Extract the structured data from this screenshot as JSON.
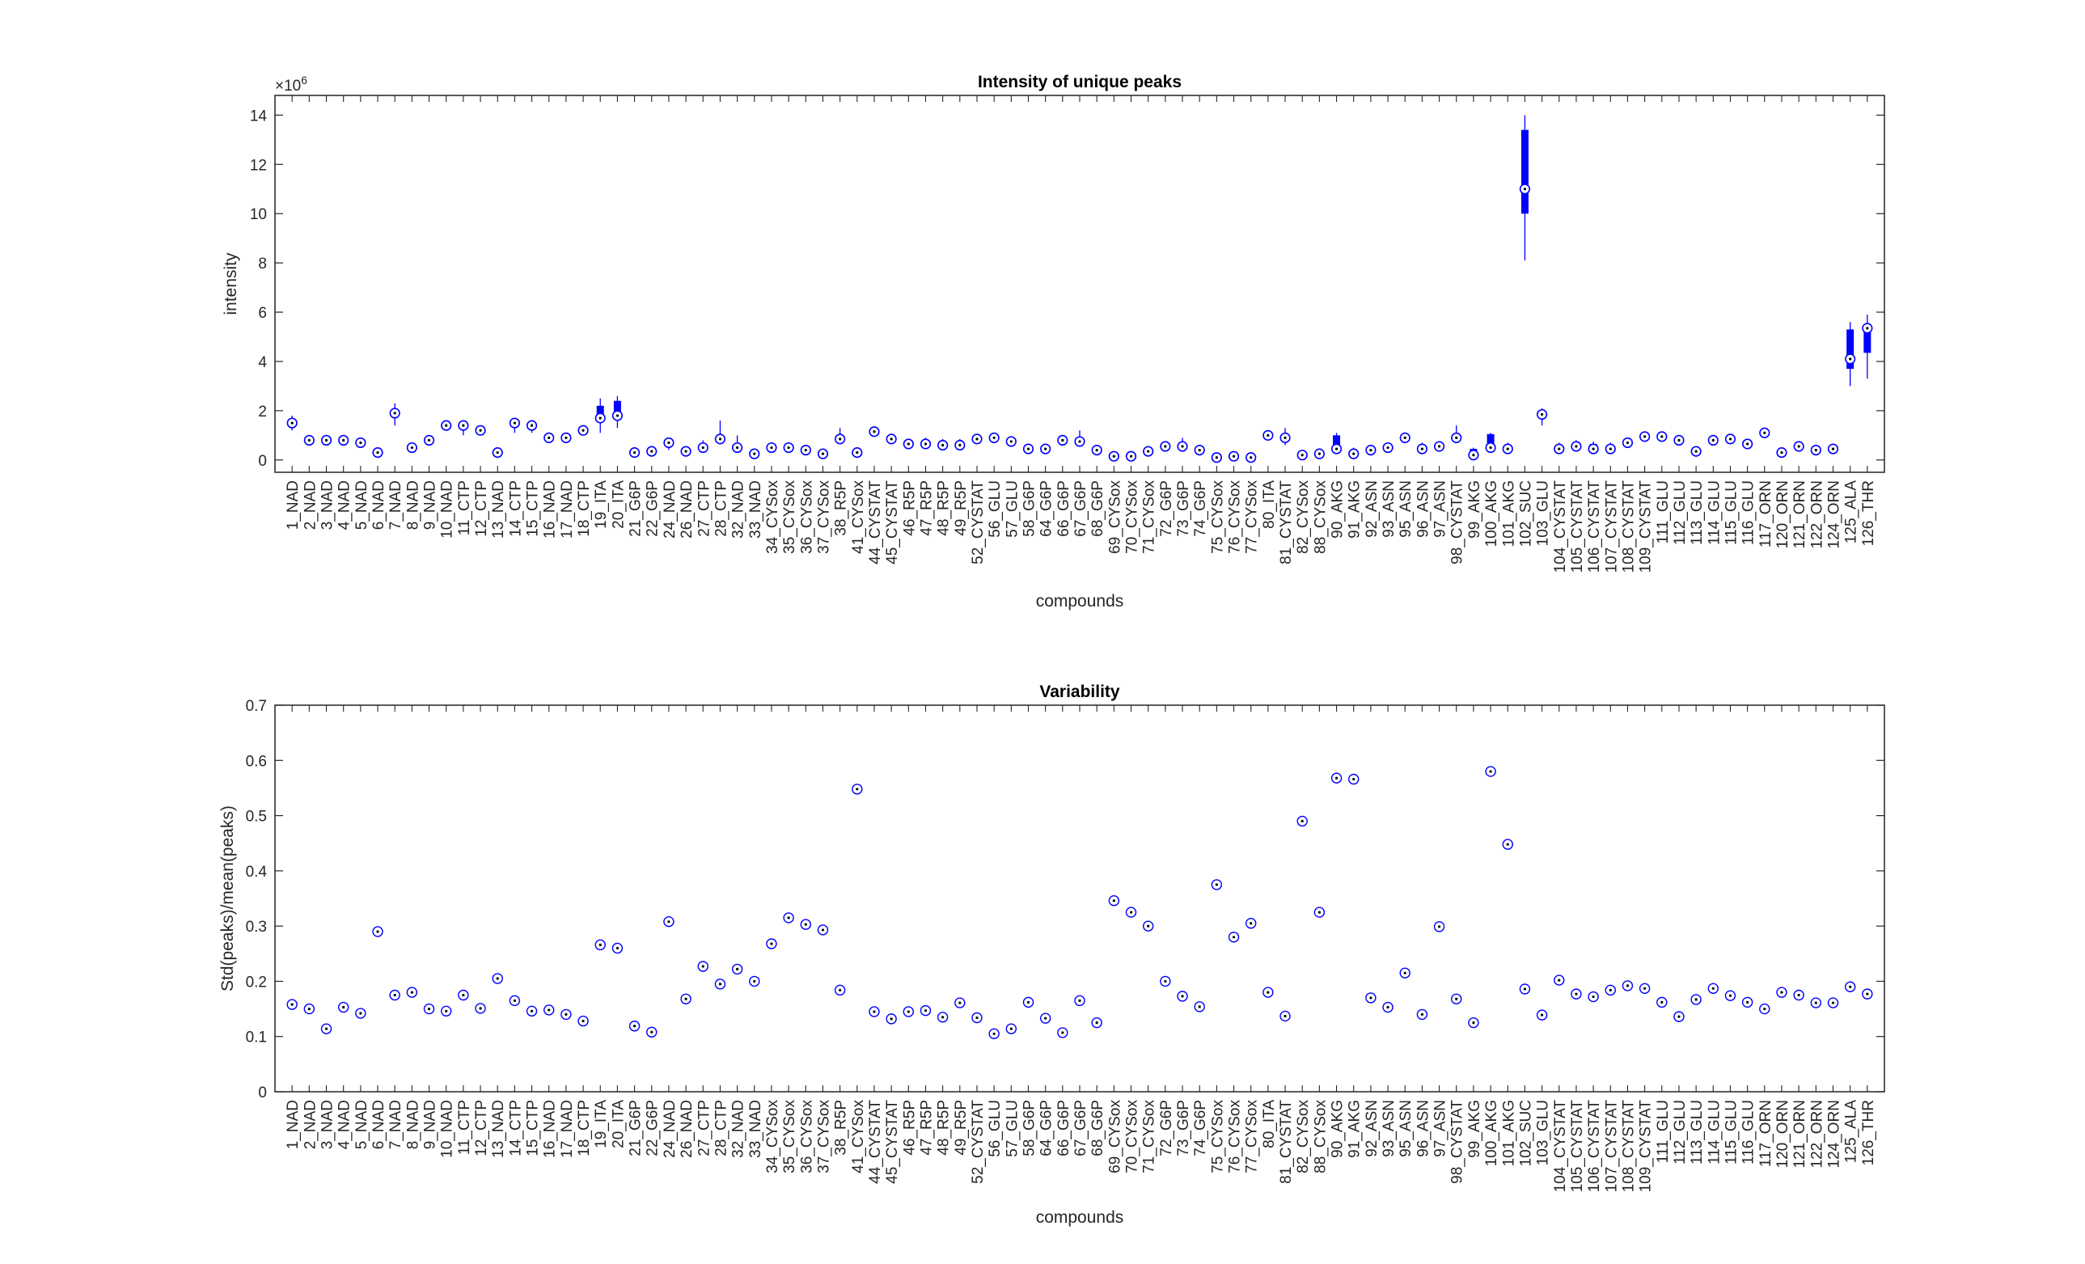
{
  "chart_data": [
    {
      "type": "box",
      "title": "Intensity of unique peaks",
      "xlabel": "compounds",
      "ylabel": "intensity",
      "y_exponent_label": "×10",
      "y_exponent": "6",
      "ylim": [
        -0.5,
        14.8
      ],
      "yticks": [
        0,
        2,
        4,
        6,
        8,
        10,
        12,
        14
      ],
      "color": "#0000ff",
      "categories": [
        "1_NAD",
        "2_NAD",
        "3_NAD",
        "4_NAD",
        "5_NAD",
        "6_NAD",
        "7_NAD",
        "8_NAD",
        "9_NAD",
        "10_NAD",
        "11_CTP",
        "12_CTP",
        "13_NAD",
        "14_CTP",
        "15_CTP",
        "16_NAD",
        "17_NAD",
        "18_CTP",
        "19_ITA",
        "20_ITA",
        "21_G6P",
        "22_G6P",
        "24_NAD",
        "26_NAD",
        "27_CTP",
        "28_CTP",
        "32_NAD",
        "33_NAD",
        "34_CYSox",
        "35_CYSox",
        "36_CYSox",
        "37_CYSox",
        "38_R5P",
        "41_CYSox",
        "44_CYSTAT",
        "45_CYSTAT",
        "46_R5P",
        "47_R5P",
        "48_R5P",
        "49_R5P",
        "52_CYSTAT",
        "56_GLU",
        "57_GLU",
        "58_G6P",
        "64_G6P",
        "66_G6P",
        "67_G6P",
        "68_G6P",
        "69_CYSox",
        "70_CYSox",
        "71_CYSox",
        "72_G6P",
        "73_G6P",
        "74_G6P",
        "75_CYSox",
        "76_CYSox",
        "77_CYSox",
        "80_ITA",
        "81_CYSTAT",
        "82_CYSox",
        "88_CYSox",
        "90_AKG",
        "91_AKG",
        "92_ASN",
        "93_ASN",
        "95_ASN",
        "96_ASN",
        "97_ASN",
        "98_CYSTAT",
        "99_AKG",
        "100_AKG",
        "101_AKG",
        "102_SUC",
        "103_GLU",
        "104_CYSTAT",
        "105_CYSTAT",
        "106_CYSTAT",
        "107_CYSTAT",
        "108_CYSTAT",
        "109_CYSTAT",
        "111_GLU",
        "112_GLU",
        "113_GLU",
        "114_GLU",
        "115_GLU",
        "116_GLU",
        "117_ORN",
        "120_ORN",
        "121_ORN",
        "122_ORN",
        "124_ORN",
        "125_ALA",
        "126_THR"
      ],
      "median": [
        1.5,
        0.8,
        0.8,
        0.8,
        0.7,
        0.3,
        1.9,
        0.5,
        0.8,
        1.4,
        1.4,
        1.2,
        0.3,
        1.5,
        1.4,
        0.9,
        0.9,
        1.2,
        1.7,
        1.8,
        0.3,
        0.35,
        0.7,
        0.35,
        0.5,
        0.85,
        0.5,
        0.25,
        0.5,
        0.5,
        0.4,
        0.25,
        0.85,
        0.3,
        1.15,
        0.85,
        0.65,
        0.65,
        0.6,
        0.6,
        0.85,
        0.9,
        0.75,
        0.45,
        0.45,
        0.8,
        0.75,
        0.4,
        0.15,
        0.15,
        0.35,
        0.55,
        0.55,
        0.4,
        0.1,
        0.15,
        0.1,
        1.0,
        0.9,
        0.2,
        0.25,
        0.45,
        0.25,
        0.4,
        0.5,
        0.9,
        0.45,
        0.55,
        0.9,
        0.2,
        0.5,
        0.45,
        11.0,
        1.85,
        0.45,
        0.55,
        0.45,
        0.45,
        0.7,
        0.95,
        0.95,
        0.8,
        0.35,
        0.8,
        0.85,
        0.65,
        1.1,
        0.3,
        0.55,
        0.4,
        0.45,
        4.1,
        5.35
      ],
      "q1": [
        1.4,
        0.75,
        0.75,
        0.75,
        0.65,
        0.25,
        1.8,
        0.45,
        0.75,
        1.3,
        1.3,
        1.1,
        0.25,
        1.4,
        1.3,
        0.85,
        0.85,
        1.1,
        1.6,
        1.7,
        0.25,
        0.3,
        0.6,
        0.3,
        0.45,
        0.8,
        0.42,
        0.2,
        0.45,
        0.45,
        0.35,
        0.2,
        0.8,
        0.25,
        1.05,
        0.8,
        0.6,
        0.55,
        0.5,
        0.5,
        0.8,
        0.85,
        0.7,
        0.4,
        0.4,
        0.7,
        0.65,
        0.35,
        0.1,
        0.1,
        0.3,
        0.5,
        0.45,
        0.35,
        0.05,
        0.05,
        0.05,
        0.95,
        0.8,
        0.15,
        0.2,
        0.35,
        0.2,
        0.35,
        0.45,
        0.85,
        0.35,
        0.5,
        0.85,
        0.15,
        0.35,
        0.35,
        10.0,
        1.75,
        0.35,
        0.45,
        0.35,
        0.35,
        0.65,
        0.9,
        0.9,
        0.75,
        0.3,
        0.75,
        0.8,
        0.6,
        1.0,
        0.25,
        0.5,
        0.35,
        0.4,
        3.7,
        4.35
      ],
      "q3": [
        1.6,
        0.85,
        0.85,
        0.85,
        0.75,
        0.35,
        2.0,
        0.55,
        0.85,
        1.5,
        1.5,
        1.3,
        0.35,
        1.6,
        1.5,
        0.95,
        0.95,
        1.3,
        2.2,
        2.4,
        0.35,
        0.45,
        0.75,
        0.45,
        0.6,
        0.9,
        0.55,
        0.35,
        0.55,
        0.55,
        0.45,
        0.35,
        0.9,
        0.35,
        1.25,
        0.9,
        0.7,
        0.75,
        0.75,
        0.75,
        0.9,
        0.95,
        0.8,
        0.5,
        0.5,
        0.9,
        0.9,
        0.45,
        0.2,
        0.2,
        0.4,
        0.6,
        0.6,
        0.45,
        0.15,
        0.25,
        0.15,
        1.1,
        1.0,
        0.25,
        0.3,
        1.0,
        0.35,
        0.45,
        0.55,
        1.0,
        0.6,
        0.6,
        1.0,
        0.45,
        1.05,
        0.6,
        13.4,
        1.95,
        0.55,
        0.65,
        0.65,
        0.55,
        0.75,
        1.0,
        1.0,
        0.85,
        0.4,
        0.85,
        0.9,
        0.7,
        1.2,
        0.35,
        0.6,
        0.45,
        0.5,
        5.3,
        5.4
      ],
      "lo": [
        1.2,
        0.7,
        0.7,
        0.7,
        0.6,
        0.2,
        1.4,
        0.4,
        0.7,
        1.2,
        1.0,
        1.0,
        0.2,
        1.1,
        1.1,
        0.8,
        0.8,
        1.0,
        1.1,
        1.3,
        0.2,
        0.25,
        0.4,
        0.25,
        0.4,
        0.75,
        0.35,
        0.15,
        0.4,
        0.4,
        0.3,
        0.15,
        0.75,
        0.2,
        1.0,
        0.75,
        0.55,
        0.5,
        0.45,
        0.45,
        0.75,
        0.8,
        0.65,
        0.35,
        0.35,
        0.65,
        0.6,
        0.3,
        0.05,
        0.05,
        0.25,
        0.45,
        0.4,
        0.3,
        0.0,
        0.0,
        0.0,
        0.8,
        0.6,
        0.1,
        0.15,
        0.3,
        0.15,
        0.3,
        0.4,
        0.7,
        0.3,
        0.45,
        0.8,
        0.1,
        0.3,
        0.3,
        8.1,
        1.4,
        0.3,
        0.4,
        0.3,
        0.3,
        0.6,
        0.85,
        0.85,
        0.7,
        0.25,
        0.7,
        0.75,
        0.55,
        0.9,
        0.2,
        0.45,
        0.3,
        0.35,
        3.0,
        3.3
      ],
      "hi": [
        1.8,
        0.9,
        0.9,
        0.9,
        0.8,
        0.4,
        2.3,
        0.6,
        0.9,
        1.6,
        1.6,
        1.4,
        0.4,
        1.7,
        1.6,
        1.0,
        1.0,
        1.4,
        2.5,
        2.6,
        0.4,
        0.5,
        0.9,
        0.5,
        0.8,
        1.6,
        1.0,
        0.4,
        0.6,
        0.6,
        0.5,
        0.4,
        1.3,
        0.4,
        1.3,
        1.0,
        0.75,
        0.9,
        0.85,
        0.85,
        1.0,
        1.0,
        0.85,
        0.55,
        0.55,
        1.0,
        1.2,
        0.5,
        0.25,
        0.25,
        0.45,
        0.65,
        0.9,
        0.55,
        0.25,
        0.35,
        0.2,
        1.2,
        1.3,
        0.3,
        0.35,
        1.1,
        0.5,
        0.5,
        0.6,
        1.1,
        0.7,
        0.65,
        1.4,
        0.5,
        1.1,
        0.7,
        14.0,
        2.1,
        0.7,
        0.8,
        0.75,
        0.7,
        0.8,
        1.05,
        1.05,
        0.9,
        0.45,
        0.9,
        0.95,
        0.75,
        1.3,
        0.4,
        0.65,
        0.5,
        0.55,
        5.6,
        5.9
      ]
    },
    {
      "type": "scatter",
      "title": "Variability",
      "xlabel": "compounds",
      "ylabel": "Std(peaks)/mean(peaks)",
      "ylim": [
        0,
        0.7
      ],
      "yticks": [
        0,
        0.1,
        0.2,
        0.3,
        0.4,
        0.5,
        0.6,
        0.7
      ],
      "color": "#0000ff",
      "categories": [
        "1_NAD",
        "2_NAD",
        "3_NAD",
        "4_NAD",
        "5_NAD",
        "6_NAD",
        "7_NAD",
        "8_NAD",
        "9_NAD",
        "10_NAD",
        "11_CTP",
        "12_CTP",
        "13_NAD",
        "14_CTP",
        "15_CTP",
        "16_NAD",
        "17_NAD",
        "18_CTP",
        "19_ITA",
        "20_ITA",
        "21_G6P",
        "22_G6P",
        "24_NAD",
        "26_NAD",
        "27_CTP",
        "28_CTP",
        "32_NAD",
        "33_NAD",
        "34_CYSox",
        "35_CYSox",
        "36_CYSox",
        "37_CYSox",
        "38_R5P",
        "41_CYSox",
        "44_CYSTAT",
        "45_CYSTAT",
        "46_R5P",
        "47_R5P",
        "48_R5P",
        "49_R5P",
        "52_CYSTAT",
        "56_GLU",
        "57_GLU",
        "58_G6P",
        "64_G6P",
        "66_G6P",
        "67_G6P",
        "68_G6P",
        "69_CYSox",
        "70_CYSox",
        "71_CYSox",
        "72_G6P",
        "73_G6P",
        "74_G6P",
        "75_CYSox",
        "76_CYSox",
        "77_CYSox",
        "80_ITA",
        "81_CYSTAT",
        "82_CYSox",
        "88_CYSox",
        "90_AKG",
        "91_AKG",
        "92_ASN",
        "93_ASN",
        "95_ASN",
        "96_ASN",
        "97_ASN",
        "98_CYSTAT",
        "99_AKG",
        "100_AKG",
        "101_AKG",
        "102_SUC",
        "103_GLU",
        "104_CYSTAT",
        "105_CYSTAT",
        "106_CYSTAT",
        "107_CYSTAT",
        "108_CYSTAT",
        "109_CYSTAT",
        "111_GLU",
        "112_GLU",
        "113_GLU",
        "114_GLU",
        "115_GLU",
        "116_GLU",
        "117_ORN",
        "120_ORN",
        "121_ORN",
        "122_ORN",
        "124_ORN",
        "125_ALA",
        "126_THR"
      ],
      "values": [
        0.158,
        0.15,
        0.114,
        0.153,
        0.142,
        0.29,
        0.175,
        0.18,
        0.15,
        0.146,
        0.175,
        0.151,
        0.205,
        0.165,
        0.146,
        0.148,
        0.14,
        0.128,
        0.266,
        0.26,
        0.119,
        0.108,
        0.308,
        0.168,
        0.227,
        0.195,
        0.222,
        0.2,
        0.268,
        0.315,
        0.303,
        0.293,
        0.184,
        0.548,
        0.145,
        0.132,
        0.145,
        0.147,
        0.135,
        0.161,
        0.134,
        0.105,
        0.114,
        0.162,
        0.133,
        0.107,
        0.165,
        0.125,
        0.346,
        0.325,
        0.3,
        0.2,
        0.173,
        0.154,
        0.375,
        0.28,
        0.305,
        0.18,
        0.137,
        0.49,
        0.325,
        0.568,
        0.566,
        0.17,
        0.153,
        0.215,
        0.14,
        0.299,
        0.168,
        0.125,
        0.58,
        0.448,
        0.186,
        0.139,
        0.202,
        0.177,
        0.172,
        0.184,
        0.192,
        0.187,
        0.162,
        0.136,
        0.167,
        0.187,
        0.174,
        0.162,
        0.15,
        0.18,
        0.175,
        0.161,
        0.161,
        0.19,
        0.177
      ]
    }
  ]
}
